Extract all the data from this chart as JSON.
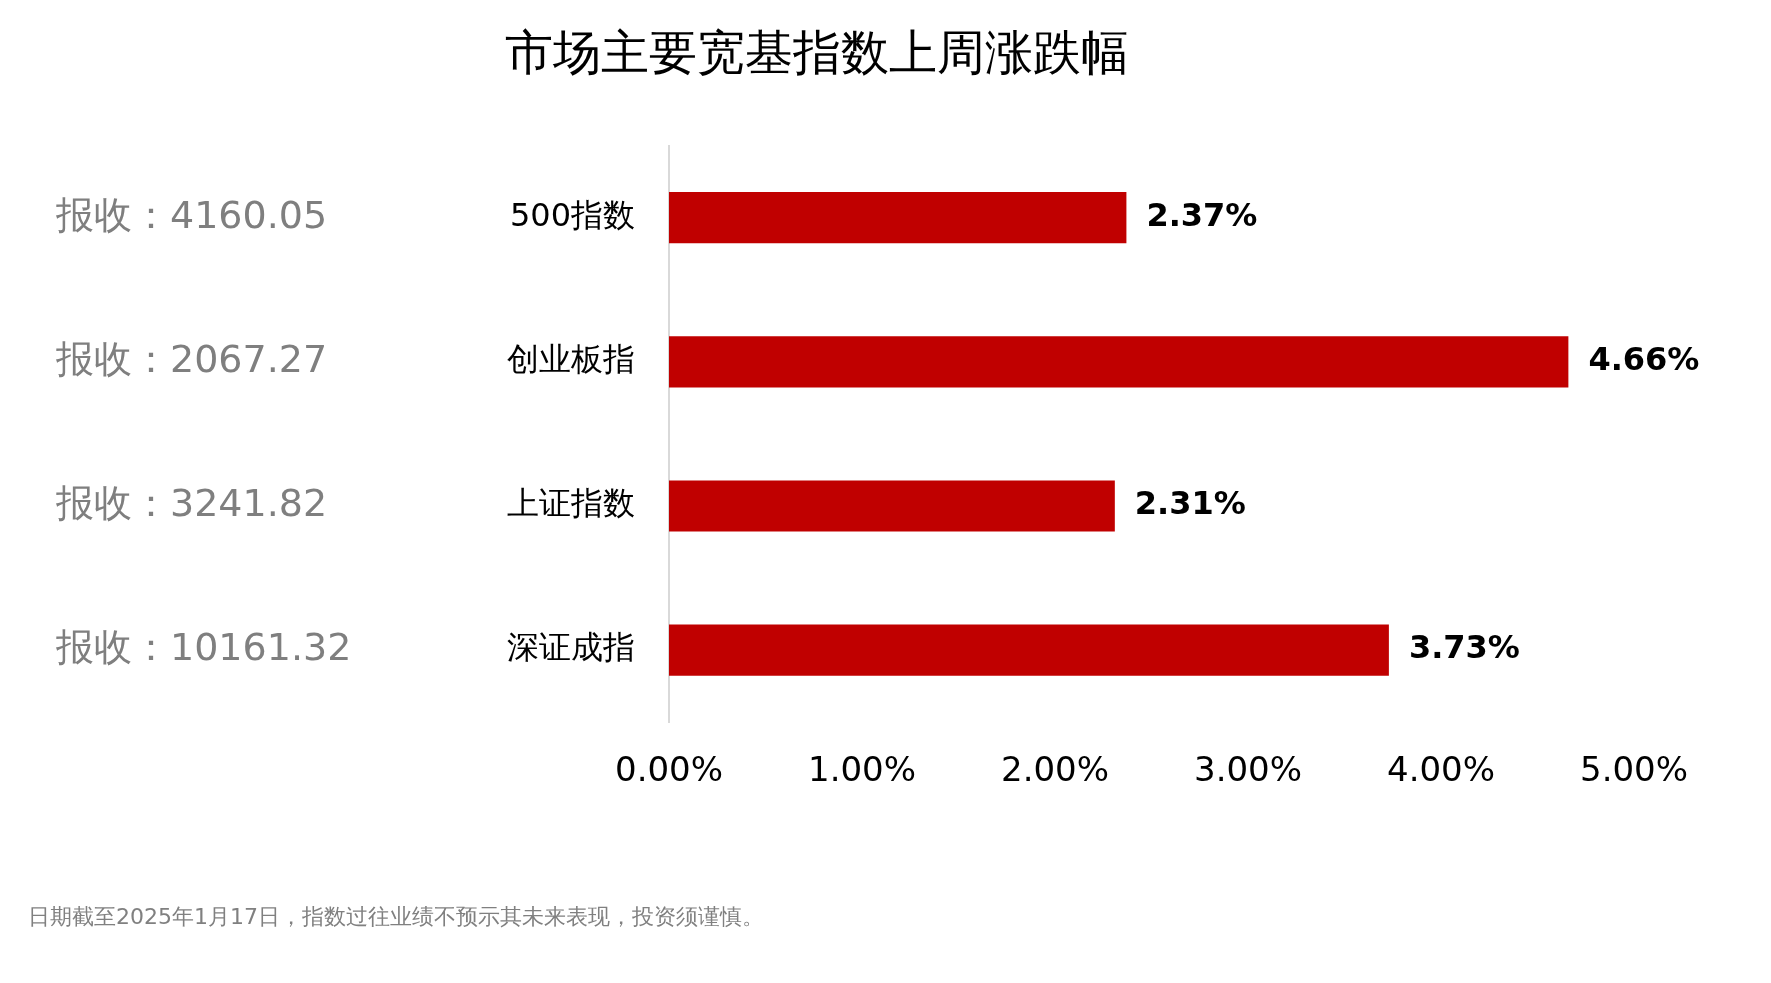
{
  "chart_data": {
    "type": "bar",
    "orientation": "horizontal",
    "title": "市场主要宽基指数上周涨跌幅",
    "categories": [
      "500指数",
      "创业板指",
      "上证指数",
      "深证成指"
    ],
    "values": [
      2.37,
      4.66,
      2.31,
      3.73
    ],
    "color": "#c00000",
    "value_labels": [
      "2.37%",
      "4.66%",
      "2.31%",
      "3.73%"
    ],
    "xlim": [
      0,
      5
    ],
    "xticks": [
      {
        "value": 0,
        "label": "0.00%"
      },
      {
        "value": 1,
        "label": "1.00%"
      },
      {
        "value": 2,
        "label": "2.00%"
      },
      {
        "value": 3,
        "label": "3.00%"
      },
      {
        "value": 4,
        "label": "4.00%"
      },
      {
        "value": 5,
        "label": "5.00%"
      }
    ],
    "grid": false,
    "legend": false,
    "annotations": [
      "报收：4160.05",
      "报收：2067.27",
      "报收：3241.82",
      "报收：10161.32",
      "日期截至2025年1月17日，指数过往业绩不预示其未来表现，投资须谨慎。"
    ]
  }
}
